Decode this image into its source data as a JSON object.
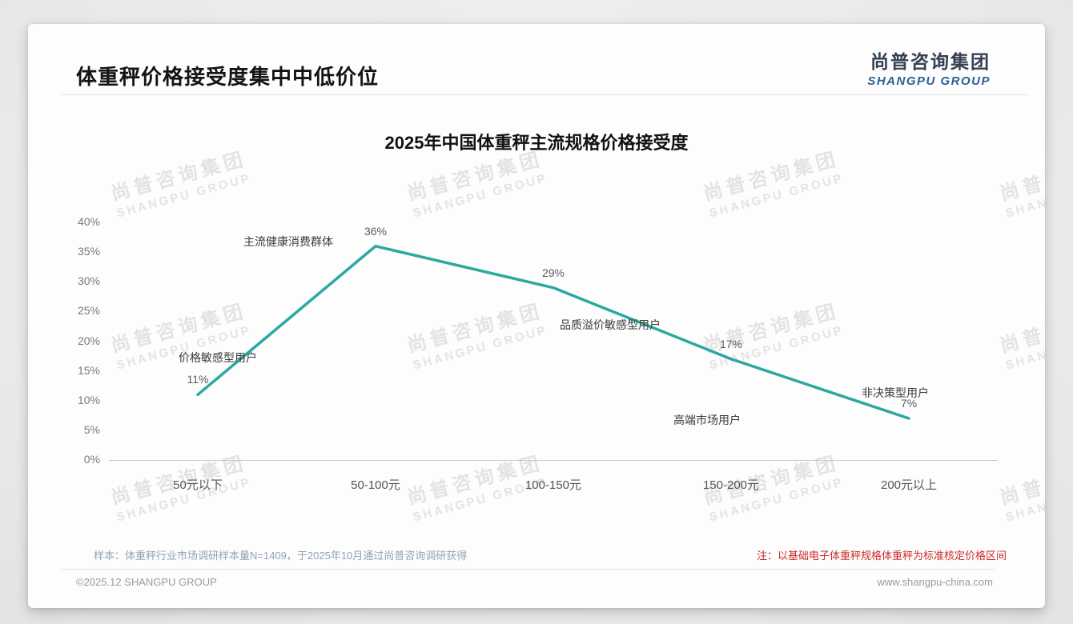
{
  "page": {
    "title": "体重秤价格接受度集中中低价位",
    "logo": {
      "cn": "尚普咨询集团",
      "en": "SHANGPU GROUP"
    },
    "watermark": {
      "line1": "尚普咨询集团",
      "line2": "SHANGPU GROUP"
    },
    "footer": {
      "sample_note": "样本：体重秤行业市场调研样本量N=1409，于2025年10月通过尚普咨询调研获得",
      "red_note": "注：以基础电子体重秤规格体重秤为标准核定价格区间",
      "copyright": "©2025.12 SHANGPU GROUP",
      "website": "www.shangpu-china.com"
    }
  },
  "chart_data": {
    "type": "line",
    "title": "2025年中国体重秤主流规格价格接受度",
    "categories": [
      "50元以下",
      "50-100元",
      "100-150元",
      "150-200元",
      "200元以上"
    ],
    "values": [
      11,
      36,
      29,
      17,
      7
    ],
    "value_labels": [
      "11%",
      "36%",
      "29%",
      "17%",
      "7%"
    ],
    "annotations": [
      "价格敏感型用户",
      "主流健康消费群体",
      "品质溢价敏感型用户",
      "高端市场用户",
      "非决策型用户"
    ],
    "xlabel": "",
    "ylabel": "",
    "ylim": [
      0,
      40
    ],
    "ytick_step": 5,
    "ytick_labels": [
      "0%",
      "5%",
      "10%",
      "15%",
      "20%",
      "25%",
      "30%",
      "35%",
      "40%"
    ],
    "line_color": "#2BA9A0",
    "axis_color": "#c9c9c9",
    "grid": false,
    "legend": "none"
  }
}
